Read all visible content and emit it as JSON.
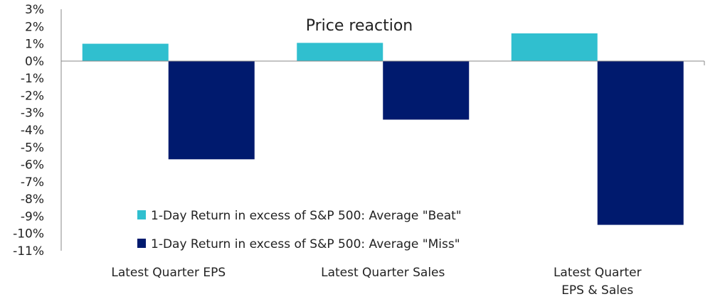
{
  "chart_data": {
    "type": "bar",
    "title": "Price reaction",
    "categories": [
      [
        "Latest Quarter EPS"
      ],
      [
        "Latest Quarter Sales"
      ],
      [
        "Latest Quarter",
        "EPS & Sales"
      ]
    ],
    "series": [
      {
        "name": "1-Day Return in excess of S&P 500: Average \"Beat\"",
        "values": [
          1.0,
          1.05,
          1.6
        ],
        "color": "#30BFCF"
      },
      {
        "name": "1-Day Return in excess of S&P 500: Average \"Miss\"",
        "values": [
          -5.7,
          -3.4,
          -9.5
        ],
        "color": "#001A6E"
      }
    ],
    "unit": "%",
    "ylim": [
      -11,
      3
    ],
    "yticks": [
      "3%",
      "2%",
      "1%",
      "0%",
      "-1%",
      "-2%",
      "-3%",
      "-4%",
      "-5%",
      "-6%",
      "-7%",
      "-8%",
      "-9%",
      "-10%",
      "-11%"
    ],
    "xlabel": "",
    "ylabel": "",
    "grid": false,
    "legend": "bottom-center, inside plot"
  }
}
